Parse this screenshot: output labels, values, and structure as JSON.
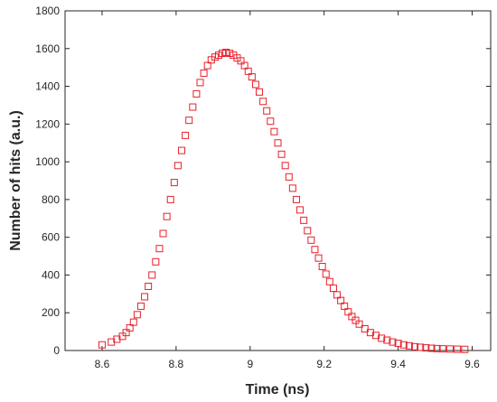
{
  "chart_data": {
    "type": "scatter",
    "title": "",
    "xlabel": "Time (ns)",
    "ylabel": "Number of hits (a.u.)",
    "xlim": [
      8.5,
      9.65
    ],
    "ylim": [
      0,
      1800
    ],
    "xticks": [
      8.6,
      8.8,
      9,
      9.2,
      9.4,
      9.6
    ],
    "xtick_labels": [
      "8.6",
      "8.8",
      "9",
      "9.2",
      "9.4",
      "9.6"
    ],
    "yticks": [
      0,
      200,
      400,
      600,
      800,
      1000,
      1200,
      1400,
      1600,
      1800
    ],
    "ytick_labels": [
      "0",
      "200",
      "400",
      "600",
      "800",
      "1000",
      "1200",
      "1400",
      "1600",
      "1800"
    ],
    "grid": false,
    "marker": "square",
    "marker_color": "#e8202a",
    "series": [
      {
        "x": [
          8.6,
          8.625,
          8.64,
          8.655,
          8.665,
          8.675,
          8.685,
          8.695,
          8.705,
          8.715,
          8.725,
          8.735,
          8.745,
          8.755,
          8.765,
          8.775,
          8.785,
          8.795,
          8.805,
          8.815,
          8.825,
          8.835,
          8.845,
          8.855,
          8.865,
          8.875,
          8.885,
          8.895,
          8.905,
          8.915,
          8.925,
          8.935,
          8.945,
          8.955,
          8.965,
          8.975,
          8.985,
          8.995,
          9.005,
          9.015,
          9.025,
          9.035,
          9.045,
          9.055,
          9.065,
          9.075,
          9.085,
          9.095,
          9.105,
          9.115,
          9.125,
          9.135,
          9.145,
          9.155,
          9.165,
          9.175,
          9.185,
          9.195,
          9.205,
          9.215,
          9.225,
          9.235,
          9.245,
          9.255,
          9.265,
          9.275,
          9.285,
          9.295,
          9.31,
          9.325,
          9.34,
          9.355,
          9.37,
          9.385,
          9.4,
          9.415,
          9.43,
          9.445,
          9.46,
          9.475,
          9.49,
          9.505,
          9.52,
          9.54,
          9.56,
          9.58
        ],
        "y": [
          30,
          45,
          60,
          75,
          95,
          120,
          150,
          190,
          235,
          285,
          340,
          400,
          470,
          540,
          620,
          710,
          800,
          890,
          980,
          1060,
          1140,
          1220,
          1290,
          1360,
          1420,
          1470,
          1510,
          1540,
          1555,
          1565,
          1575,
          1580,
          1575,
          1565,
          1550,
          1535,
          1510,
          1480,
          1450,
          1410,
          1370,
          1320,
          1270,
          1215,
          1160,
          1100,
          1040,
          980,
          920,
          860,
          800,
          745,
          690,
          635,
          585,
          535,
          490,
          445,
          405,
          365,
          330,
          295,
          265,
          235,
          205,
          180,
          160,
          140,
          115,
          95,
          80,
          65,
          55,
          45,
          38,
          30,
          25,
          20,
          17,
          14,
          12,
          10,
          9,
          8,
          7,
          6
        ]
      }
    ]
  }
}
